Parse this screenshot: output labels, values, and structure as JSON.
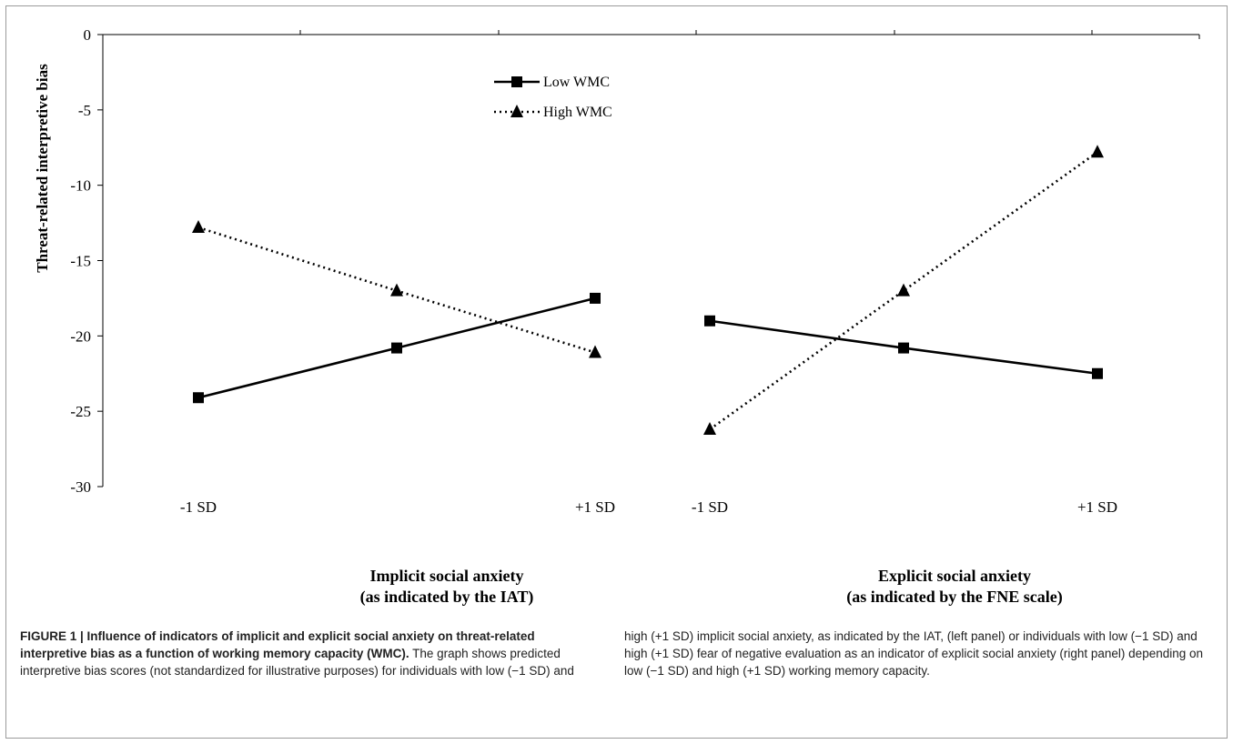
{
  "chart_data": {
    "type": "line",
    "ylabel": "Threat-related interpretive bias",
    "ylim": [
      -30,
      0
    ],
    "yticks": [
      "0",
      "-5",
      "-10",
      "-15",
      "-20",
      "-25",
      "-30"
    ],
    "legend": {
      "position": "top-center",
      "entries": [
        {
          "name": "Low WMC",
          "style": "solid",
          "marker": "square"
        },
        {
          "name": "High WMC",
          "style": "dotted",
          "marker": "triangle"
        }
      ]
    },
    "panels": [
      {
        "xlabel_line1": "Implicit social anxiety",
        "xlabel_line2": "(as indicated by the IAT)",
        "x": [
          "-1 SD",
          "",
          "+1 SD"
        ],
        "xtick_labels": [
          "-1 SD",
          "+1 SD"
        ],
        "series": [
          {
            "name": "Low WMC",
            "values": [
              -24.1,
              -20.8,
              -17.5
            ]
          },
          {
            "name": "High WMC",
            "values": [
              -12.8,
              -17.0,
              -21.1
            ]
          }
        ]
      },
      {
        "xlabel_line1": "Explicit social anxiety",
        "xlabel_line2": "(as indicated by the FNE scale)",
        "x": [
          "-1 SD",
          "",
          "+1 SD"
        ],
        "xtick_labels": [
          "-1 SD",
          "+1 SD"
        ],
        "series": [
          {
            "name": "Low WMC",
            "values": [
              -19.0,
              -20.8,
              -22.5
            ]
          },
          {
            "name": "High WMC",
            "values": [
              -26.2,
              -17.0,
              -7.8
            ]
          }
        ]
      }
    ]
  },
  "caption": {
    "label": "FIGURE 1 | ",
    "bold_text": "Influence of indicators of implicit and explicit social anxiety on threat-related interpretive bias as a function of working memory capacity (WMC).",
    "text_left": " The graph shows predicted interpretive bias scores (not standardized for illustrative purposes) for individuals with low (−1 SD) and",
    "text_right": "high (+1 SD) implicit social anxiety, as indicated by the IAT, (left panel) or individuals with low (−1 SD) and high (+1 SD) fear of negative evaluation as an indicator of explicit social anxiety (right panel) depending on low (−1 SD) and high (+1 SD) working memory capacity."
  }
}
